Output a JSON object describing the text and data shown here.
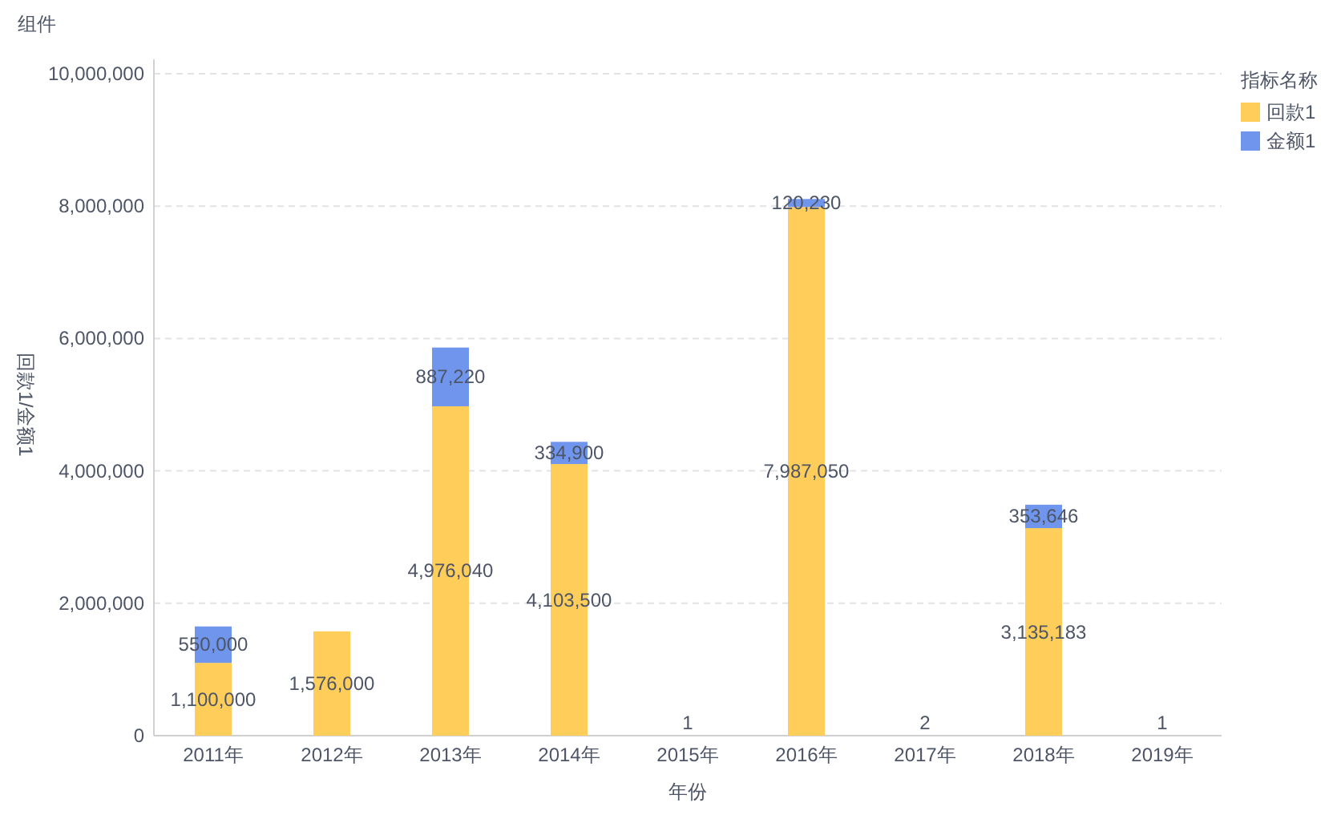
{
  "chart_data": {
    "type": "bar",
    "title": "组件",
    "xlabel": "年份",
    "ylabel": "回款1/金额1",
    "legend_title": "指标名称",
    "stacked": true,
    "legend": "top right",
    "grid": "y",
    "categories": [
      "2011年",
      "2012年",
      "2013年",
      "2014年",
      "2015年",
      "2016年",
      "2017年",
      "2018年",
      "2019年"
    ],
    "series": [
      {
        "name": "回款1",
        "color": "#fecd5a",
        "values": [
          1100000,
          1576000,
          4976040,
          4103500,
          null,
          7987050,
          null,
          3135183,
          null
        ],
        "value_labels": [
          "1,100,000",
          "1,576,000",
          "4,976,040",
          "4,103,500",
          null,
          "7,987,050",
          null,
          "3,135,183",
          null
        ]
      },
      {
        "name": "金额1",
        "color": "#6f95ec",
        "values": [
          550000,
          null,
          887220,
          334900,
          1,
          120230,
          2,
          353646,
          1
        ],
        "value_labels": [
          "550,000",
          null,
          "887,220",
          "334,900",
          "1",
          "120,230",
          "2",
          "353,646",
          "1"
        ]
      }
    ],
    "ylim": [
      0,
      10000000
    ],
    "yticks": [
      {
        "value": 0,
        "label": "0"
      },
      {
        "value": 2000000,
        "label": "2,000,000"
      },
      {
        "value": 4000000,
        "label": "4,000,000"
      },
      {
        "value": 6000000,
        "label": "6,000,000"
      },
      {
        "value": 8000000,
        "label": "8,000,000"
      },
      {
        "value": 10000000,
        "label": "10,000,000"
      }
    ]
  }
}
